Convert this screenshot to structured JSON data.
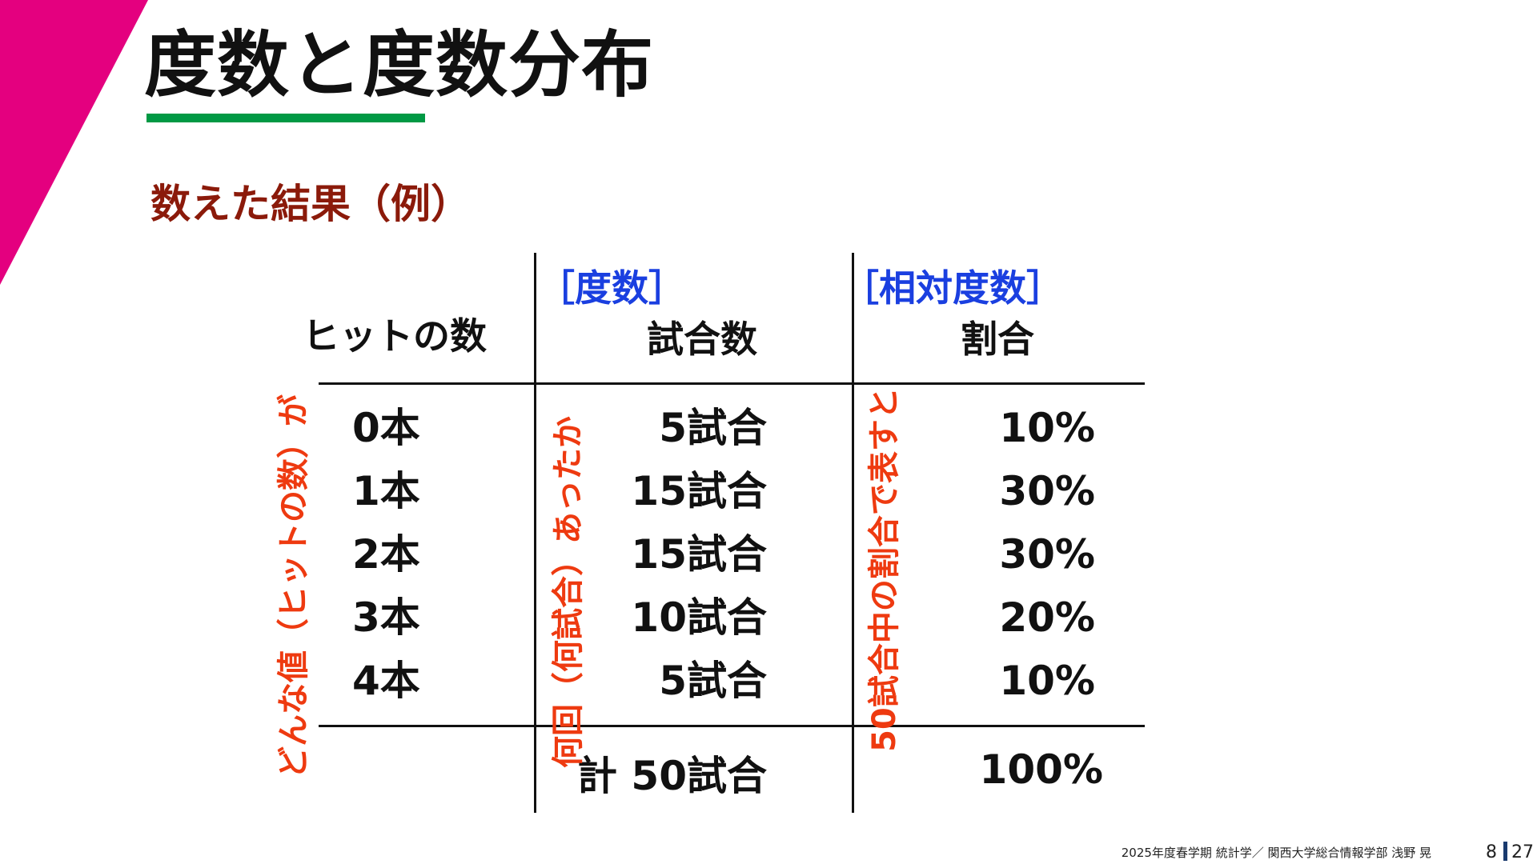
{
  "colors": {
    "accent_magenta": "#e4007f",
    "underline_green": "#009944",
    "subtitle_brown": "#8b1a0a",
    "header_blue": "#1a3fe0",
    "note_red": "#ee3a10",
    "text": "#111111",
    "page_separator": "#1a3a6e"
  },
  "slide": {
    "title": "度数と度数分布",
    "subtitle": "数えた結果（例）"
  },
  "table": {
    "col_headers": {
      "hits": "ヒットの数",
      "games": "試合数",
      "ratio": "割合"
    },
    "group_labels": {
      "frequency": "［度数］",
      "relative_frequency": "［相対度数］"
    },
    "rows": [
      {
        "hits": "0本",
        "games": "5試合",
        "ratio": "10%"
      },
      {
        "hits": "1本",
        "games": "15試合",
        "ratio": "30%"
      },
      {
        "hits": "2本",
        "games": "15試合",
        "ratio": "30%"
      },
      {
        "hits": "3本",
        "games": "10試合",
        "ratio": "20%"
      },
      {
        "hits": "4本",
        "games": "5試合",
        "ratio": "10%"
      }
    ],
    "total": {
      "games": "計 50試合",
      "ratio": "100%"
    },
    "notes": {
      "left": "どんな値（ヒットの数）が",
      "middle": "何回（何試合）あったか",
      "right": "50試合中の割合で表すと"
    }
  },
  "footer": {
    "text": "2025年度春学期  統計学／  関西大学総合情報学部  浅野  晃",
    "page_current": "8",
    "page_total": "27"
  }
}
